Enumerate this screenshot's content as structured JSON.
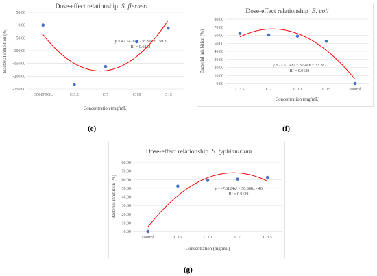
{
  "chart_data": [
    {
      "id": "e",
      "type": "scatter",
      "caption": "(e)",
      "title": "Dose-effect relationship",
      "species": "S. flexneri",
      "xlabel": "Concentration (mg/mL)",
      "ylabel": "Bacterial inhibition (%)",
      "categories": [
        "CONTROL",
        "C 3.5",
        "C 7",
        "C 10",
        "C 15"
      ],
      "values": [
        0,
        -232,
        -162,
        -65,
        -12
      ],
      "ylim": [
        -250,
        50
      ],
      "yticks": [
        "50.00",
        "0.00",
        "-50.00",
        "-100.00",
        "-150.00",
        "-200.00",
        "-250.00"
      ],
      "trendline": {
        "type": "polynomial",
        "coefficients": [
          42.142,
          -238.89,
          159.3
        ],
        "equation": "y = 42.142x² - 238.89x + 159.3",
        "r2": "R² = 0.6812"
      },
      "grid": true,
      "legend": "none"
    },
    {
      "id": "f",
      "type": "scatter",
      "caption": "(f)",
      "title": "Dose-effect relationship",
      "species": "E. coli",
      "xlabel": "Concentration (mg/mL)",
      "ylabel": "Bacterial inhibition (%)",
      "categories": [
        "C 3.5",
        "C 7",
        "C 10",
        "C 15",
        "control"
      ],
      "values": [
        62.5,
        60.5,
        59,
        52.5,
        0
      ],
      "ylim": [
        0,
        80
      ],
      "yticks": [
        "80.00",
        "70.00",
        "60.00",
        "50.00",
        "40.00",
        "30.00",
        "20.00",
        "10.00",
        "0.00"
      ],
      "trendline": {
        "type": "polynomial",
        "coefficients": [
          -7.6124,
          32.46,
          33.282
        ],
        "equation": "y = -7.6124x² + 32.46x + 33.282",
        "r2": "R² = 0.9139"
      },
      "grid": true,
      "legend": "none"
    },
    {
      "id": "g",
      "type": "scatter",
      "caption": "(g)",
      "title": "Dose-effect relationship",
      "species": "S. typhimurium",
      "xlabel": "Concentration (mg/mL)",
      "ylabel": "Bacterial inhibition (%)",
      "categories": [
        "control",
        "C 15",
        "C 10",
        "C 7",
        "C 3.5"
      ],
      "values": [
        0,
        52.5,
        59,
        60.5,
        62.5
      ],
      "ylim": [
        0,
        80
      ],
      "yticks": [
        "80.00",
        "70.00",
        "60.00",
        "50.00",
        "40.00",
        "30.00",
        "20.00",
        "10.00",
        "0.00"
      ],
      "trendline": {
        "type": "polynomial",
        "coefficients": [
          -7.6124,
          58.888,
          -46
        ],
        "equation": "y = -7.6124x² + 58.888x - 46",
        "r2": "R² = 0.9139"
      },
      "grid": true,
      "legend": "none"
    }
  ]
}
